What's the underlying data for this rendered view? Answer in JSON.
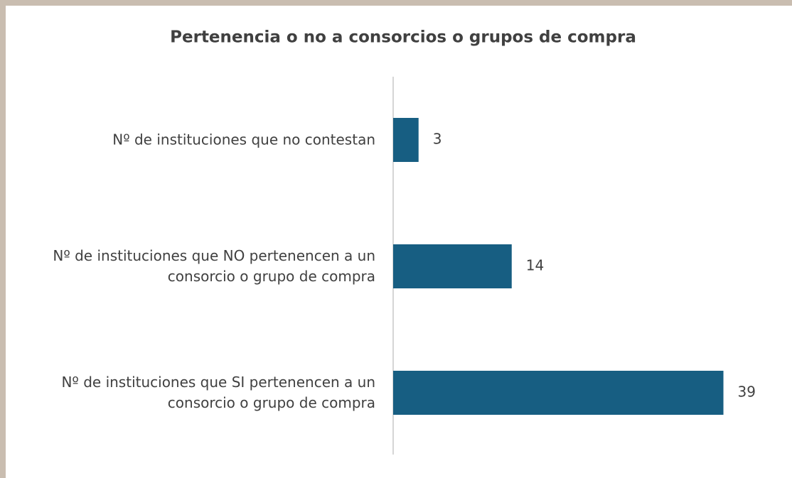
{
  "chart_data": {
    "type": "bar",
    "orientation": "horizontal",
    "title": "Pertenencia o no a consorcios o grupos de compra",
    "categories": [
      "Nº de instituciones que no contestan",
      "Nº de instituciones que NO pertenencen a un consorcio o grupo de compra",
      "Nº de instituciones que SI pertenencen a un consorcio o grupo de compra"
    ],
    "values": [
      3,
      14,
      39
    ],
    "color": "#175e82",
    "xlim": [
      0,
      45
    ]
  }
}
